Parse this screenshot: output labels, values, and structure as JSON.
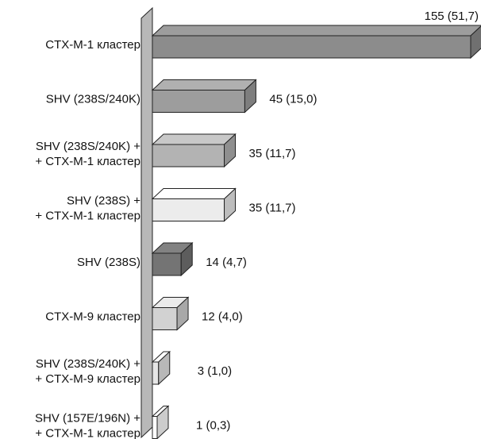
{
  "chart_data": {
    "type": "bar",
    "orientation": "horizontal",
    "style": "3d",
    "title": "",
    "xlabel": "",
    "ylabel": "",
    "xlim": [
      0,
      155
    ],
    "grid": false,
    "legend": "none",
    "categories": [
      [
        "CTX-M-1 кластер"
      ],
      [
        "SHV (238S/240K)"
      ],
      [
        "SHV (238S/240K) +",
        "+ CTX-M-1 кластер"
      ],
      [
        "SHV (238S) +",
        "+ CTX-M-1 кластер"
      ],
      [
        "SHV (238S)"
      ],
      [
        "CTX-M-9 кластер"
      ],
      [
        "SHV (238S/240K) +",
        "+ CTX-M-9 кластер"
      ],
      [
        "SHV (157E/196N) +",
        "+ CTX-M-1 кластер"
      ]
    ],
    "values": [
      155,
      45,
      35,
      35,
      14,
      12,
      3,
      1
    ],
    "percent": [
      51.7,
      15.0,
      11.7,
      11.7,
      4.7,
      4.0,
      1.0,
      0.3
    ],
    "value_labels": [
      "155 (51,7)",
      "45 (15,0)",
      "35 (11,7)",
      "35 (11,7)",
      "14 (4,7)",
      "12 (4,0)",
      "3 (1,0)",
      "1 (0,3)"
    ],
    "colors": [
      "#8c8c8c",
      "#9d9d9d",
      "#b3b3b3",
      "#ececec",
      "#747474",
      "#d2d2d2",
      "#e6e6e6",
      "#ffffff"
    ],
    "wall_color": "#b8b8b8"
  }
}
